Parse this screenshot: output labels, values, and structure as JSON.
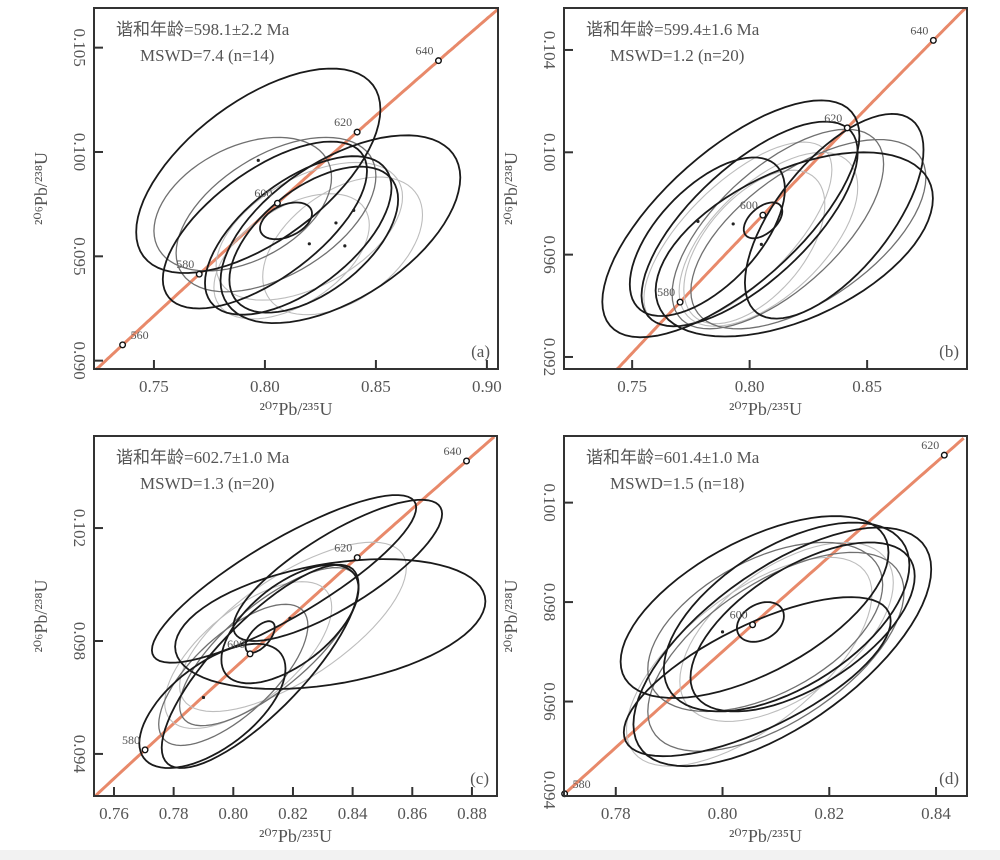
{
  "concordia_color": "#e8896a",
  "ellipse_colors": {
    "dark": "#1a1a1a",
    "mid": "#707070",
    "light": "#bdbdbd"
  },
  "chart_data": [
    {
      "type": "scatter",
      "panel_label": "(a)",
      "annotation": [
        "谐和年龄=598.1±2.2 Ma",
        "MSWD=7.4 (n=14)"
      ],
      "xlabel": "²⁰⁷Pb/²³⁵U",
      "ylabel": "²⁰⁶Pb/²³⁸U",
      "xlim": [
        0.723,
        0.905
      ],
      "ylim": [
        0.0896,
        0.1069
      ],
      "xticks": [
        "0.75",
        "0.80",
        "0.85",
        "0.90"
      ],
      "yticks": [
        "0.090",
        "0.095",
        "0.100",
        "0.105"
      ],
      "concordia_ages_ma": [
        "560",
        "580",
        "600",
        "620",
        "640"
      ],
      "mean_ellipse": {
        "cx": 0.8095,
        "cy": 0.0967,
        "sx": 0.0117,
        "sy": 0.00088,
        "rho": 0.4
      },
      "ellipses": [
        {
          "cx": 0.797,
          "cy": 0.0991,
          "sx": 0.055,
          "sy": 0.0049,
          "rho": 0.6,
          "shade": "dark"
        },
        {
          "cx": 0.834,
          "cy": 0.0963,
          "sx": 0.054,
          "sy": 0.0045,
          "rho": 0.55,
          "shade": "dark"
        },
        {
          "cx": 0.8,
          "cy": 0.0965,
          "sx": 0.046,
          "sy": 0.004,
          "rho": 0.65,
          "shade": "dark"
        },
        {
          "cx": 0.815,
          "cy": 0.096,
          "sx": 0.042,
          "sy": 0.0038,
          "rho": 0.6,
          "shade": "dark"
        },
        {
          "cx": 0.822,
          "cy": 0.0958,
          "sx": 0.038,
          "sy": 0.0035,
          "rho": 0.55,
          "shade": "dark"
        },
        {
          "cx": 0.805,
          "cy": 0.097,
          "sx": 0.045,
          "sy": 0.0037,
          "rho": 0.5,
          "shade": "mid"
        },
        {
          "cx": 0.79,
          "cy": 0.0975,
          "sx": 0.04,
          "sy": 0.0032,
          "rho": 0.4,
          "shade": "mid"
        },
        {
          "cx": 0.82,
          "cy": 0.0962,
          "sx": 0.042,
          "sy": 0.0033,
          "rho": 0.5,
          "shade": "light"
        },
        {
          "cx": 0.835,
          "cy": 0.0955,
          "sx": 0.036,
          "sy": 0.0033,
          "rho": 0.45,
          "shade": "light"
        },
        {
          "cx": 0.812,
          "cy": 0.095,
          "sx": 0.035,
          "sy": 0.003,
          "rho": 0.5,
          "shade": "light"
        }
      ],
      "points": [
        [
          0.832,
          0.0966
        ],
        [
          0.84,
          0.0972
        ],
        [
          0.836,
          0.0955
        ],
        [
          0.82,
          0.0956
        ],
        [
          0.797,
          0.0996
        ]
      ]
    },
    {
      "type": "scatter",
      "panel_label": "(b)",
      "annotation": [
        "谐和年龄=599.4±1.6 Ma",
        "MSWD=1.2 (n=20)"
      ],
      "xlabel": "²⁰⁷Pb/²³⁵U",
      "ylabel": "²⁰⁶Pb/²³⁸U",
      "xlim": [
        0.721,
        0.8925
      ],
      "ylim": [
        0.09153,
        0.10564
      ],
      "xticks": [
        "0.75",
        "0.80",
        "0.85"
      ],
      "yticks": [
        "0.092",
        "0.096",
        "0.100",
        "0.104"
      ],
      "concordia_ages_ma": [
        "580",
        "600",
        "620",
        "640"
      ],
      "mean_ellipse": {
        "cx": 0.8057,
        "cy": 0.09734,
        "sx": 0.0082,
        "sy": 0.0007,
        "rho": 0.5
      },
      "ellipses": [
        {
          "cx": 0.792,
          "cy": 0.0974,
          "sx": 0.0547,
          "sy": 0.00463,
          "rho": 0.7,
          "shade": "dark"
        },
        {
          "cx": 0.819,
          "cy": 0.0964,
          "sx": 0.059,
          "sy": 0.0036,
          "rho": 0.5,
          "shade": "dark"
        },
        {
          "cx": 0.782,
          "cy": 0.0967,
          "sx": 0.033,
          "sy": 0.0031,
          "rho": 0.6,
          "shade": "dark"
        },
        {
          "cx": 0.836,
          "cy": 0.0975,
          "sx": 0.038,
          "sy": 0.004,
          "rho": 0.65,
          "shade": "dark"
        },
        {
          "cx": 0.8,
          "cy": 0.0972,
          "sx": 0.046,
          "sy": 0.004,
          "rho": 0.7,
          "shade": "dark"
        },
        {
          "cx": 0.812,
          "cy": 0.097,
          "sx": 0.045,
          "sy": 0.0039,
          "rho": 0.65,
          "shade": "mid"
        },
        {
          "cx": 0.825,
          "cy": 0.0968,
          "sx": 0.05,
          "sy": 0.0037,
          "rho": 0.6,
          "shade": "mid"
        },
        {
          "cx": 0.795,
          "cy": 0.0968,
          "sx": 0.04,
          "sy": 0.0036,
          "rho": 0.7,
          "shade": "light"
        },
        {
          "cx": 0.808,
          "cy": 0.0966,
          "sx": 0.038,
          "sy": 0.0034,
          "rho": 0.6,
          "shade": "light"
        },
        {
          "cx": 0.802,
          "cy": 0.0963,
          "sx": 0.03,
          "sy": 0.003,
          "rho": 0.55,
          "shade": "light"
        }
      ],
      "points": [
        [
          0.778,
          0.0973
        ],
        [
          0.805,
          0.0964
        ],
        [
          0.793,
          0.0972
        ]
      ]
    },
    {
      "type": "scatter",
      "panel_label": "(c)",
      "annotation": [
        "谐和年龄=602.7±1.0 Ma",
        "MSWD=1.3 (n=20)"
      ],
      "xlabel": "²⁰⁷Pb/²³⁵U",
      "ylabel": "²⁰⁶Pb/²³⁸U",
      "xlim": [
        0.7533,
        0.8884
      ],
      "ylim": [
        0.09251,
        0.10526
      ],
      "xticks": [
        "0.76",
        "0.78",
        "0.80",
        "0.82",
        "0.84",
        "0.86",
        "0.88"
      ],
      "yticks": [
        "0.094",
        "0.098",
        "0.102"
      ],
      "concordia_ages_ma": [
        "580",
        "600",
        "620",
        "640"
      ],
      "mean_ellipse": {
        "cx": 0.809,
        "cy": 0.09814,
        "sx": 0.0049,
        "sy": 0.00056,
        "rho": 0.6
      },
      "ellipses": [
        {
          "cx": 0.8325,
          "cy": 0.0986,
          "sx": 0.052,
          "sy": 0.0023,
          "rho": 0.35,
          "shade": "dark"
        },
        {
          "cx": 0.817,
          "cy": 0.1002,
          "sx": 0.0443,
          "sy": 0.00297,
          "rho": 0.85,
          "shade": "dark"
        },
        {
          "cx": 0.809,
          "cy": 0.0971,
          "sx": 0.033,
          "sy": 0.0036,
          "rho": 0.8,
          "shade": "dark"
        },
        {
          "cx": 0.793,
          "cy": 0.0957,
          "sx": 0.0245,
          "sy": 0.0022,
          "rho": 0.6,
          "shade": "dark"
        },
        {
          "cx": 0.819,
          "cy": 0.0986,
          "sx": 0.023,
          "sy": 0.0021,
          "rho": 0.6,
          "shade": "dark"
        },
        {
          "cx": 0.835,
          "cy": 0.1005,
          "sx": 0.035,
          "sy": 0.0025,
          "rho": 0.8,
          "shade": "dark"
        },
        {
          "cx": 0.8,
          "cy": 0.0968,
          "sx": 0.025,
          "sy": 0.0025,
          "rho": 0.7,
          "shade": "mid"
        },
        {
          "cx": 0.812,
          "cy": 0.0978,
          "sx": 0.03,
          "sy": 0.0028,
          "rho": 0.75,
          "shade": "mid"
        },
        {
          "cx": 0.82,
          "cy": 0.0985,
          "sx": 0.038,
          "sy": 0.003,
          "rho": 0.7,
          "shade": "light"
        },
        {
          "cx": 0.805,
          "cy": 0.0975,
          "sx": 0.028,
          "sy": 0.0026,
          "rho": 0.65,
          "shade": "light"
        }
      ],
      "points": [
        [
          0.79,
          0.096
        ],
        [
          0.819,
          0.0988
        ]
      ]
    },
    {
      "type": "scatter",
      "panel_label": "(d)",
      "annotation": [
        "谐和年龄=601.4±1.0 Ma",
        "MSWD=1.5 (n=18)"
      ],
      "xlabel": "²⁰⁷Pb/²³⁵U",
      "ylabel": "²⁰⁶Pb/²³⁸U",
      "xlim": [
        0.7703,
        0.8458
      ],
      "ylim": [
        0.0941,
        0.10134
      ],
      "xticks": [
        "0.78",
        "0.80",
        "0.82",
        "0.84"
      ],
      "yticks": [
        "0.094",
        "0.096",
        "0.098",
        "0.100"
      ],
      "concordia_ages_ma": [
        "580",
        "600",
        "620"
      ],
      "mean_ellipse": {
        "cx": 0.8071,
        "cy": 0.0976,
        "sx": 0.0044,
        "sy": 0.0004,
        "rho": 0.3
      },
      "ellipses": [
        {
          "cx": 0.806,
          "cy": 0.0979,
          "sx": 0.0251,
          "sy": 0.00183,
          "rho": 0.6,
          "shade": "dark"
        },
        {
          "cx": 0.8112,
          "cy": 0.0971,
          "sx": 0.0279,
          "sy": 0.0024,
          "rho": 0.65,
          "shade": "dark"
        },
        {
          "cx": 0.8065,
          "cy": 0.0965,
          "sx": 0.025,
          "sy": 0.0016,
          "rho": 0.7,
          "shade": "dark"
        },
        {
          "cx": 0.812,
          "cy": 0.0977,
          "sx": 0.023,
          "sy": 0.0019,
          "rho": 0.55,
          "shade": "dark"
        },
        {
          "cx": 0.815,
          "cy": 0.0975,
          "sx": 0.021,
          "sy": 0.0017,
          "rho": 0.6,
          "shade": "dark"
        },
        {
          "cx": 0.808,
          "cy": 0.0975,
          "sx": 0.022,
          "sy": 0.0017,
          "rho": 0.5,
          "shade": "mid"
        },
        {
          "cx": 0.81,
          "cy": 0.097,
          "sx": 0.024,
          "sy": 0.002,
          "rho": 0.6,
          "shade": "mid"
        },
        {
          "cx": 0.805,
          "cy": 0.0968,
          "sx": 0.023,
          "sy": 0.0021,
          "rho": 0.65,
          "shade": "light"
        },
        {
          "cx": 0.812,
          "cy": 0.0974,
          "sx": 0.02,
          "sy": 0.0018,
          "rho": 0.55,
          "shade": "light"
        }
      ],
      "points": [
        [
          0.8,
          0.0974
        ]
      ]
    }
  ]
}
